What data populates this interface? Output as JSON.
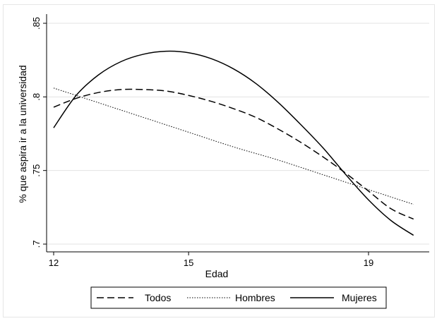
{
  "chart_data": {
    "type": "line",
    "xlabel": "Edad",
    "ylabel": "% que aspira ir a la universidad",
    "xlim": [
      12,
      20.1
    ],
    "ylim": [
      0.7,
      0.85
    ],
    "x_ticks": [
      {
        "value": 12,
        "label": "12"
      },
      {
        "value": 15,
        "label": "15"
      },
      {
        "value": 19,
        "label": "19"
      }
    ],
    "y_ticks": [
      {
        "value": 0.7,
        "label": ".7"
      },
      {
        "value": 0.75,
        "label": ".75"
      },
      {
        "value": 0.8,
        "label": ".8"
      },
      {
        "value": 0.85,
        "label": ".85"
      }
    ],
    "grid": true,
    "legend_position": "bottom",
    "series": [
      {
        "name": "Todos",
        "style": "dashed",
        "color": "#000000",
        "x": [
          12,
          12.5,
          13,
          13.5,
          14,
          14.5,
          15,
          15.5,
          16,
          16.5,
          17,
          17.5,
          18,
          18.5,
          19,
          19.5,
          20
        ],
        "y": [
          0.793,
          0.799,
          0.803,
          0.805,
          0.805,
          0.804,
          0.801,
          0.797,
          0.792,
          0.786,
          0.778,
          0.769,
          0.759,
          0.748,
          0.736,
          0.724,
          0.717
        ]
      },
      {
        "name": "Hombres",
        "style": "dotted",
        "color": "#000000",
        "x": [
          12,
          13,
          14,
          15,
          16,
          17,
          18,
          19,
          20
        ],
        "y": [
          0.806,
          0.796,
          0.786,
          0.776,
          0.766,
          0.757,
          0.747,
          0.737,
          0.727
        ]
      },
      {
        "name": "Mujeres",
        "style": "solid",
        "color": "#000000",
        "x": [
          12,
          12.5,
          13,
          13.5,
          14,
          14.5,
          15,
          15.5,
          16,
          16.5,
          17,
          17.5,
          18,
          18.5,
          19,
          19.5,
          20
        ],
        "y": [
          0.779,
          0.801,
          0.815,
          0.824,
          0.829,
          0.831,
          0.83,
          0.826,
          0.819,
          0.809,
          0.796,
          0.781,
          0.765,
          0.747,
          0.73,
          0.716,
          0.706
        ]
      }
    ]
  }
}
